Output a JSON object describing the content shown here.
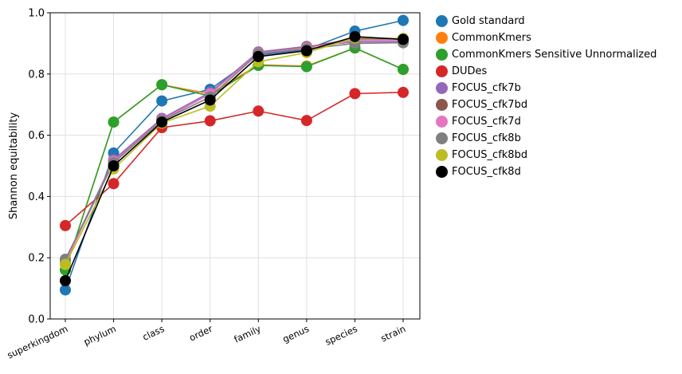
{
  "chart_data": {
    "type": "line",
    "title": "",
    "xlabel": "",
    "ylabel": "Shannon equitability",
    "ylim": [
      0,
      1
    ],
    "yticks": [
      "0.0",
      "0.2",
      "0.4",
      "0.6",
      "0.8",
      "1.0"
    ],
    "grid": true,
    "legend_position": "outside-right",
    "categories": [
      "superkingdom",
      "phylum",
      "class",
      "order",
      "family",
      "genus",
      "species",
      "strain"
    ],
    "series": [
      {
        "name": "Gold standard",
        "color": "#1f77b4",
        "values": [
          0.095,
          0.542,
          0.712,
          0.75,
          0.862,
          0.88,
          0.94,
          0.975
        ]
      },
      {
        "name": "CommonKmers",
        "color": "#ff7f0e",
        "values": [
          0.16,
          0.643,
          0.765,
          0.735,
          0.83,
          0.826,
          0.885,
          0.815
        ]
      },
      {
        "name": "CommonKmers Sensitive Unnormalized",
        "color": "#2ca02c",
        "values": [
          0.16,
          0.643,
          0.765,
          0.728,
          0.828,
          0.824,
          0.885,
          0.815
        ]
      },
      {
        "name": "DUDes",
        "color": "#d62728",
        "values": [
          0.305,
          0.442,
          0.625,
          0.647,
          0.679,
          0.648,
          0.736,
          0.74
        ]
      },
      {
        "name": "FOCUS_cfk7b",
        "color": "#9467bd",
        "values": [
          0.19,
          0.52,
          0.655,
          0.74,
          0.872,
          0.89,
          0.905,
          0.905
        ]
      },
      {
        "name": "FOCUS_cfk7bd",
        "color": "#8c564b",
        "values": [
          0.185,
          0.515,
          0.65,
          0.735,
          0.868,
          0.888,
          0.915,
          0.915
        ]
      },
      {
        "name": "FOCUS_cfk7d",
        "color": "#e377c2",
        "values": [
          0.185,
          0.515,
          0.65,
          0.735,
          0.868,
          0.886,
          0.91,
          0.91
        ]
      },
      {
        "name": "FOCUS_cfk8b",
        "color": "#7f7f7f",
        "values": [
          0.195,
          0.51,
          0.648,
          0.725,
          0.866,
          0.882,
          0.9,
          0.902
        ]
      },
      {
        "name": "FOCUS_cfk8bd",
        "color": "#bcbd22",
        "values": [
          0.178,
          0.49,
          0.64,
          0.695,
          0.84,
          0.87,
          0.918,
          0.916
        ]
      },
      {
        "name": "FOCUS_cfk8d",
        "color": "#000000",
        "values": [
          0.125,
          0.5,
          0.643,
          0.715,
          0.857,
          0.876,
          0.922,
          0.913
        ]
      }
    ]
  }
}
